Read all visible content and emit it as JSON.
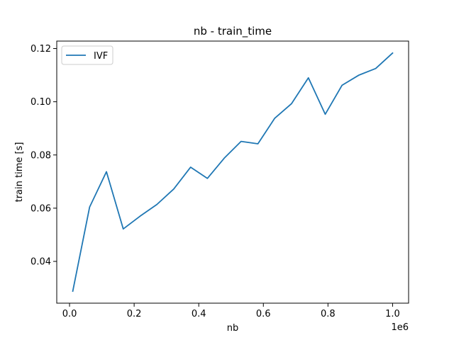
{
  "chart_data": {
    "type": "line",
    "title": "nb - train_time",
    "xlabel": "nb",
    "ylabel": "train time [s]",
    "x_offset_label": "1e6",
    "xlim": [
      -0.0396,
      1.0496
    ],
    "ylim": [
      0.0243,
      0.1228
    ],
    "xticks": [
      0.0,
      0.2,
      0.4,
      0.6,
      0.8,
      1.0
    ],
    "xtick_labels": [
      "0.0",
      "0.2",
      "0.4",
      "0.6",
      "0.8",
      "1.0"
    ],
    "yticks": [
      0.04,
      0.06,
      0.08,
      0.1,
      0.12
    ],
    "ytick_labels": [
      "0.04",
      "0.06",
      "0.08",
      "0.10",
      "0.12"
    ],
    "grid": false,
    "legend_position": "top-left",
    "series": [
      {
        "name": "IVF",
        "color": "#1f77b4",
        "x": [
          0.01,
          0.0621,
          0.1142,
          0.1663,
          0.2184,
          0.2705,
          0.3226,
          0.3747,
          0.4268,
          0.4789,
          0.531,
          0.5831,
          0.6352,
          0.6873,
          0.7394,
          0.7915,
          0.8436,
          0.8957,
          0.9478,
          1.0
        ],
        "y": [
          0.0288,
          0.0604,
          0.0737,
          0.0522,
          0.057,
          0.0614,
          0.0672,
          0.0754,
          0.0712,
          0.0788,
          0.0851,
          0.0842,
          0.0938,
          0.0993,
          0.109,
          0.0953,
          0.1062,
          0.11,
          0.1125,
          0.1183
        ]
      }
    ]
  }
}
